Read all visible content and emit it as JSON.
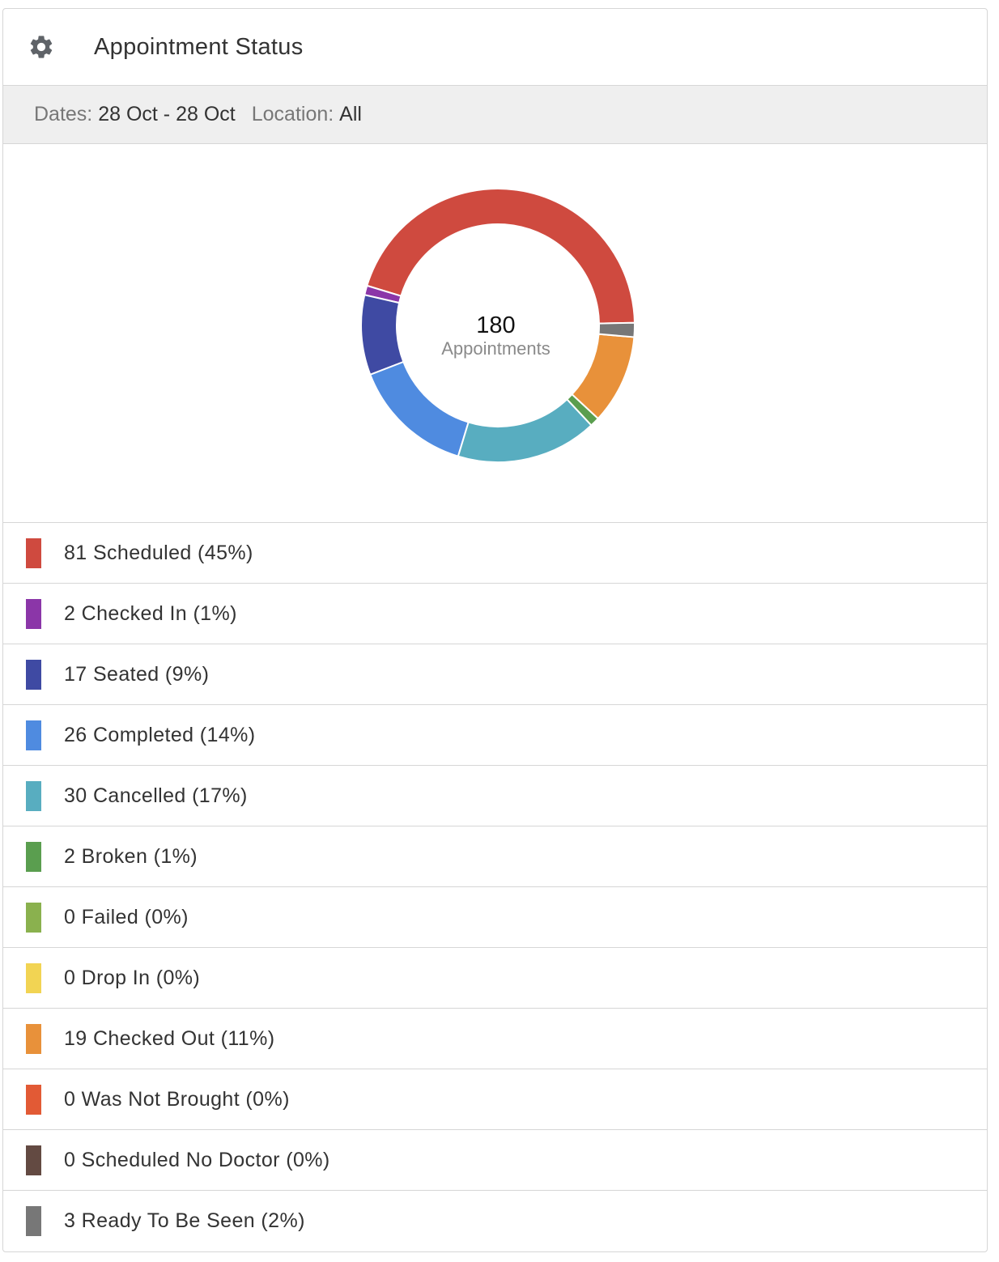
{
  "header": {
    "title": "Appointment Status",
    "icon": "gear-icon"
  },
  "filters": {
    "dates_label": "Dates:",
    "dates_value": "28 Oct - 28 Oct",
    "location_label": "Location:",
    "location_value": "All"
  },
  "chart_center": {
    "total": "180",
    "label": "Appointments"
  },
  "chart_data": {
    "type": "pie",
    "total": 180,
    "categories": [
      "Scheduled",
      "Checked In",
      "Seated",
      "Completed",
      "Cancelled",
      "Broken",
      "Failed",
      "Drop In",
      "Checked Out",
      "Was Not Brought",
      "Scheduled No Doctor",
      "Ready To Be Seen"
    ],
    "values": [
      81,
      2,
      17,
      26,
      30,
      2,
      0,
      0,
      19,
      0,
      0,
      3
    ],
    "colors": [
      "#cf4a3f",
      "#8b36a8",
      "#3f4aa3",
      "#4f8be0",
      "#58adc0",
      "#5a9e4f",
      "#8ab14e",
      "#f2d453",
      "#e8913a",
      "#e25a35",
      "#634a42",
      "#777777"
    ]
  },
  "legend": [
    {
      "text": "81 Scheduled (45%)",
      "color": "#cf4a3f"
    },
    {
      "text": "2 Checked In (1%)",
      "color": "#8b36a8"
    },
    {
      "text": "17 Seated (9%)",
      "color": "#3f4aa3"
    },
    {
      "text": "26 Completed (14%)",
      "color": "#4f8be0"
    },
    {
      "text": "30 Cancelled (17%)",
      "color": "#58adc0"
    },
    {
      "text": "2 Broken (1%)",
      "color": "#5a9e4f"
    },
    {
      "text": "0 Failed (0%)",
      "color": "#8ab14e"
    },
    {
      "text": "0 Drop In (0%)",
      "color": "#f2d453"
    },
    {
      "text": "19 Checked Out (11%)",
      "color": "#e8913a"
    },
    {
      "text": "0 Was Not Brought (0%)",
      "color": "#e25a35"
    },
    {
      "text": "0 Scheduled No Doctor (0%)",
      "color": "#634a42"
    },
    {
      "text": "3 Ready To Be Seen (2%)",
      "color": "#777777"
    }
  ]
}
